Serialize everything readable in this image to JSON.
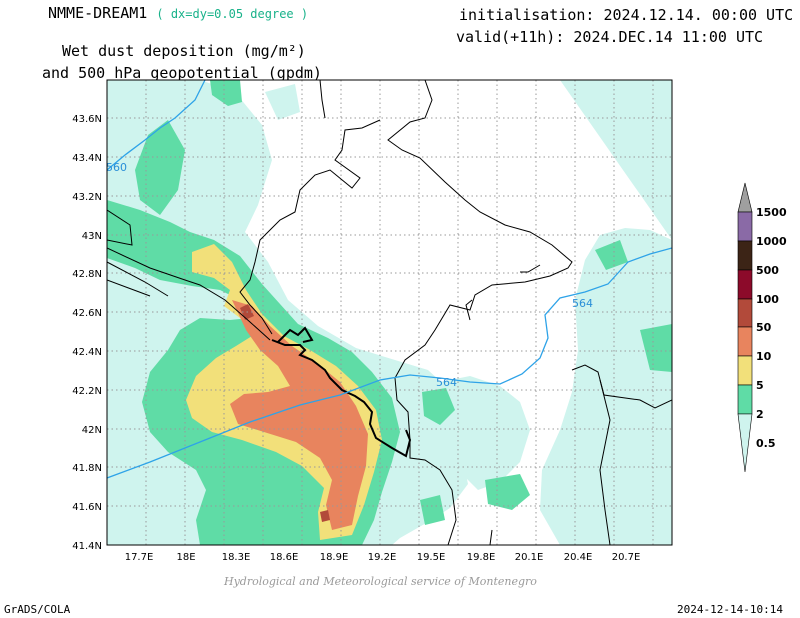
{
  "header": {
    "model": "NMME-DREAM1",
    "resolution": "( dx=dy=0.05 degree )",
    "initialisation": "initialisation: 2024.12.14. 00:00 UTC",
    "valid": "valid(+11h): 2024.DEC.14 11:00 UTC",
    "variable_line1": "Wet dust deposition (mg/m²)",
    "variable_line2": "and 500 hPa geopotential (gpdm)"
  },
  "footer": {
    "credit": "Hydrological and Meteorological service of Montenegro",
    "software": "GrADS/COLA",
    "timestamp": "2024-12-14-10:14"
  },
  "map": {
    "lat_ticks": [
      "43.6N",
      "43.4N",
      "43.2N",
      "43N",
      "42.8N",
      "42.6N",
      "42.4N",
      "42.2N",
      "42N",
      "41.8N",
      "41.6N",
      "41.4N"
    ],
    "lon_ticks": [
      "17.7E",
      "18E",
      "18.3E",
      "18.6E",
      "18.9E",
      "19.2E",
      "19.5E",
      "19.8E",
      "20.1E",
      "20.4E",
      "20.7E"
    ],
    "contour_labels": [
      "560",
      "564",
      "564"
    ],
    "grid": true
  },
  "colorbar": {
    "levels": [
      "1500",
      "1000",
      "500",
      "100",
      "50",
      "10",
      "5",
      "2",
      "0.5"
    ],
    "colors": [
      "#9f9f9f",
      "#8a6aa6",
      "#3c2416",
      "#8c0a2a",
      "#b24a3a",
      "#e8845e",
      "#f2e07a",
      "#5fdca6",
      "#cff4ee"
    ]
  }
}
